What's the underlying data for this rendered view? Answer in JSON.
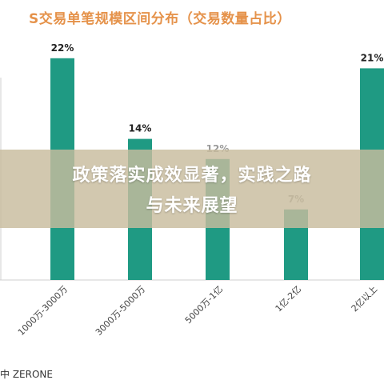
{
  "chart_data": {
    "type": "bar",
    "title": "S交易单笔规模区间分布（交易数量占比）",
    "categories": [
      "1000万-3000万",
      "3000万-5000万",
      "5000万-1亿",
      "1亿-2亿",
      "2亿以上"
    ],
    "values": [
      22,
      14,
      12,
      7,
      21
    ],
    "value_labels": [
      "22%",
      "14%",
      "12%",
      "7%",
      "21%"
    ],
    "ylim": [
      0,
      25
    ],
    "grid": false,
    "bar_color": "#1f9a83"
  },
  "source": "中 ZERONE",
  "overlay": {
    "line1": "政策落实成效显著，实践之路",
    "line2": "与未来展望"
  },
  "colors": {
    "title": "#e5924a",
    "bar": "#1f9a83",
    "overlay_bg": "#c8bc9e"
  }
}
